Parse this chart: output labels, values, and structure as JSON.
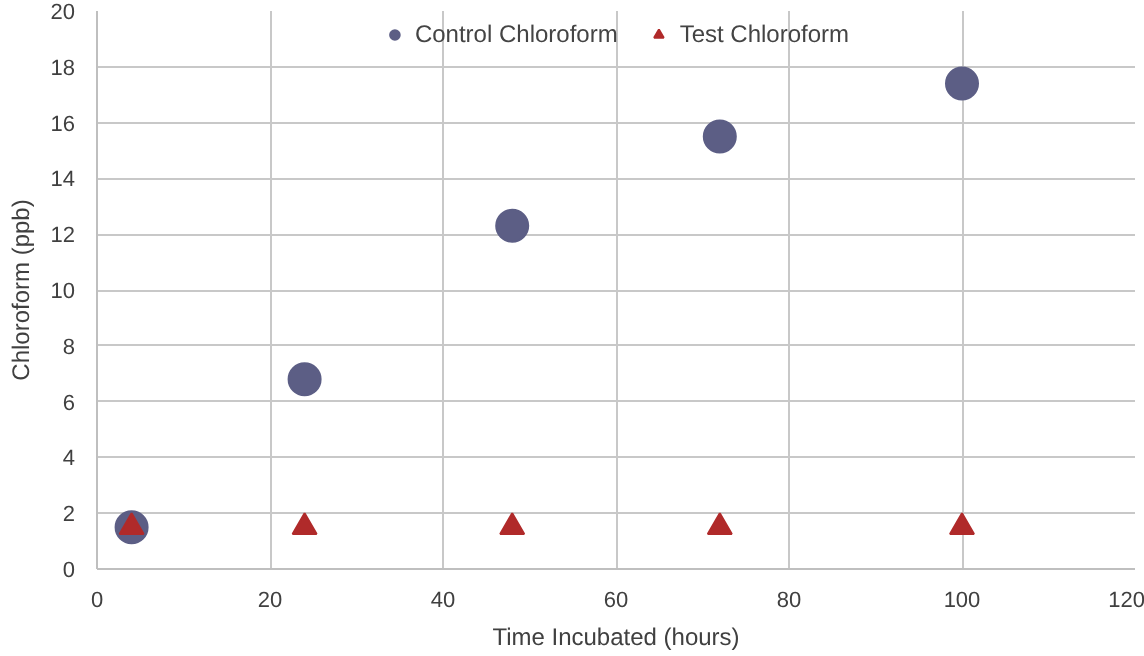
{
  "chart_data": {
    "type": "scatter",
    "xlabel": "Time Incubated (hours)",
    "ylabel": "Chloroform (ppb)",
    "xlim": [
      0,
      120
    ],
    "xticks": [
      0,
      20,
      40,
      60,
      80,
      100,
      120
    ],
    "ylim": [
      0,
      20
    ],
    "yticks": [
      0,
      2,
      4,
      6,
      8,
      10,
      12,
      14,
      16,
      18,
      20
    ],
    "grid": true,
    "legend": "top",
    "series": [
      {
        "name": "Control Chloroform",
        "color": "#5c5e85",
        "marker": "circle",
        "x": [
          4,
          24,
          48,
          72,
          100
        ],
        "values": [
          1.5,
          6.8,
          12.3,
          15.5,
          17.4
        ]
      },
      {
        "name": "Test Chloroform",
        "color": "#b02a2a",
        "marker": "triangle",
        "x": [
          4,
          24,
          48,
          72,
          100
        ],
        "values": [
          1.5,
          1.5,
          1.5,
          1.5,
          1.5
        ]
      }
    ]
  }
}
